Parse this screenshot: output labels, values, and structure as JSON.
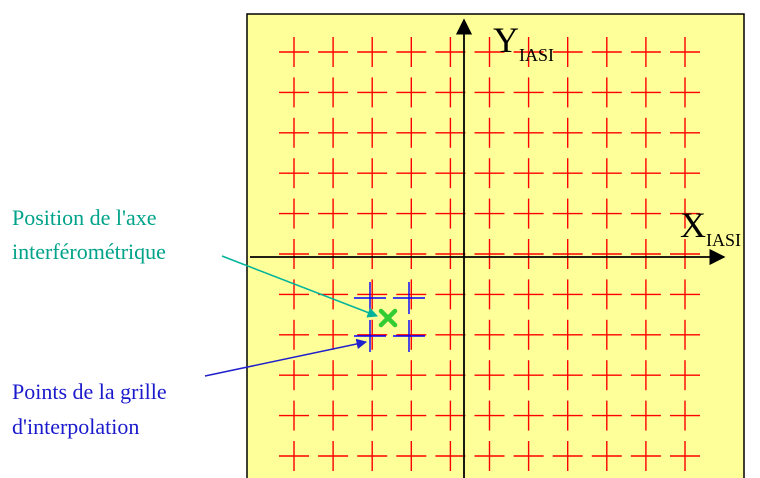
{
  "colors": {
    "background": "#ffffff",
    "panel_fill": "#ffff99",
    "panel_border": "#000000",
    "grid_cross": "#ff0000",
    "interp_cross": "#0000ff",
    "axis_marker": "#33cc33",
    "axis_line": "#000000",
    "label_green": "#00a38a",
    "label_blue": "#1a1acc",
    "arrow_green": "#00b39a",
    "arrow_blue": "#2020cc"
  },
  "icons": {
    "grid_point": "plus-cross",
    "interp_point": "plus-cross",
    "interferometric_axis": "x-mark"
  },
  "axes": {
    "y_main": "Y",
    "y_sub": "IASI",
    "x_main": "X",
    "x_sub": "IASI"
  },
  "labels": {
    "axis_position_line1": "Position de l'axe",
    "axis_position_line2": "interférométrique",
    "grid_points_line1": "Points de la grille",
    "grid_points_line2": "d'interpolation"
  },
  "grid": {
    "columns": 11,
    "rows": 11,
    "interp_columns": 2,
    "interp_rows": 2
  }
}
